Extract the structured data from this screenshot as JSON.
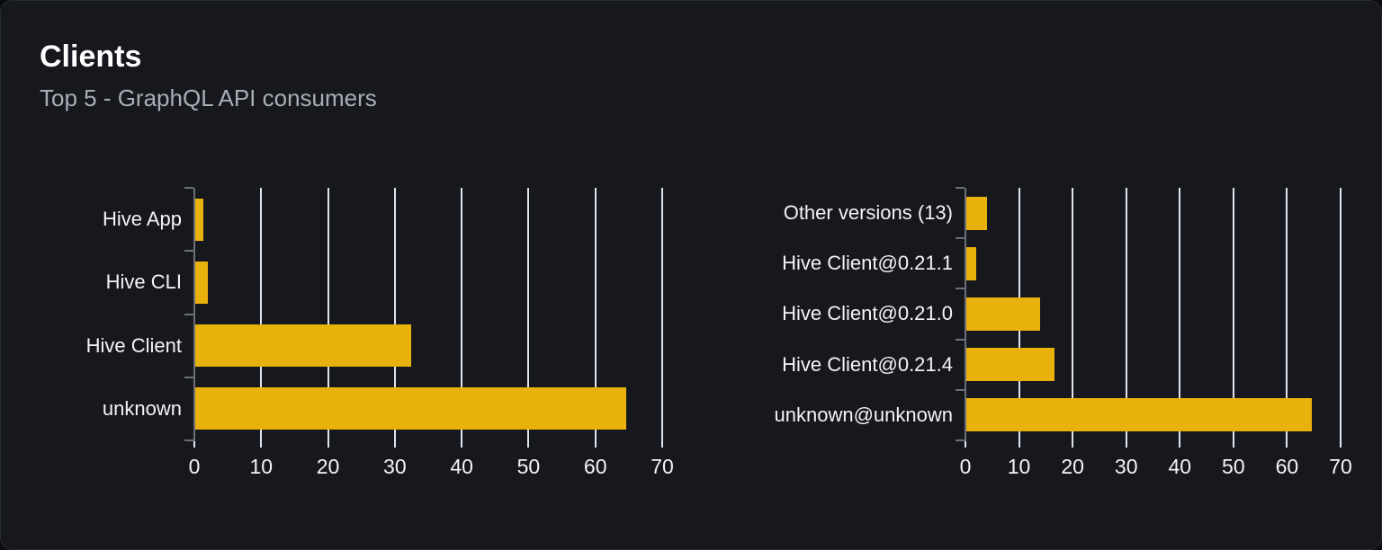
{
  "card": {
    "title": "Clients",
    "subtitle": "Top 5 - GraphQL API consumers"
  },
  "colors": {
    "page_background": "#0a0b0e",
    "card_background": "#16181d",
    "card_border": "#272b32",
    "bar": "#e9b10c",
    "gridline": "#dfe3ee",
    "axis": "#6c6f77",
    "title_text": "#ffffff",
    "subtitle_text": "#a9aeb6",
    "label_text": "#f3f4f6"
  },
  "chart_data": [
    {
      "type": "bar",
      "name": "clients-by-name",
      "orientation": "horizontal",
      "categories": [
        "Hive App",
        "Hive CLI",
        "Hive Client",
        "unknown"
      ],
      "values": [
        1.2,
        1.9,
        32.3,
        64.5
      ],
      "xlim": [
        0,
        70
      ],
      "xticks": [
        0,
        10,
        20,
        30,
        40,
        50,
        60,
        70
      ],
      "grid": true,
      "legend": "none",
      "title": "",
      "xlabel": "",
      "ylabel": ""
    },
    {
      "type": "bar",
      "name": "clients-by-version",
      "orientation": "horizontal",
      "categories": [
        "Other versions (13)",
        "Hive Client@0.21.1",
        "Hive Client@0.21.0",
        "Hive Client@0.21.4",
        "unknown@unknown"
      ],
      "values": [
        3.9,
        1.8,
        13.7,
        16.4,
        64.5
      ],
      "xlim": [
        0,
        70
      ],
      "xticks": [
        0,
        10,
        20,
        30,
        40,
        50,
        60,
        70
      ],
      "grid": true,
      "legend": "none",
      "title": "",
      "xlabel": "",
      "ylabel": ""
    }
  ]
}
